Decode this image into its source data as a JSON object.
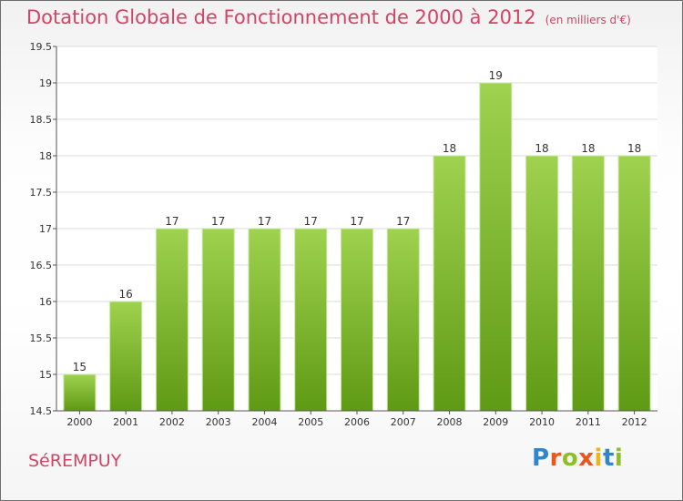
{
  "title": "Dotation Globale de Fonctionnement de 2000 à 2012",
  "unit": "(en milliers d'€)",
  "commune": "SéREMPUY",
  "logo": {
    "text": "Proxiti",
    "letters": [
      {
        "char": "P",
        "color": "#2f86c9"
      },
      {
        "char": "r",
        "color": "#e9561f"
      },
      {
        "char": "o",
        "color": "#8fbf28"
      },
      {
        "char": "x",
        "color": "#e9561f"
      },
      {
        "char": "i",
        "color": "#f0b416"
      },
      {
        "char": "t",
        "color": "#2f86c9"
      },
      {
        "char": "i",
        "color": "#8fbf28"
      }
    ]
  },
  "colors": {
    "title": "#d24366",
    "bar_top": "#9fd24e",
    "bar_bottom": "#5f9a15",
    "grid": "#d9d9d9",
    "axis": "#555555",
    "text": "#333333"
  },
  "chart_data": {
    "type": "bar",
    "categories": [
      "2000",
      "2001",
      "2002",
      "2003",
      "2004",
      "2005",
      "2006",
      "2007",
      "2008",
      "2009",
      "2010",
      "2011",
      "2012"
    ],
    "values": [
      15,
      16,
      17,
      17,
      17,
      17,
      17,
      17,
      18,
      19,
      18,
      18,
      18
    ],
    "data_labels": [
      "15",
      "16",
      "17",
      "17",
      "17",
      "17",
      "17",
      "17",
      "18",
      "19",
      "18",
      "18",
      "18"
    ],
    "title": "Dotation Globale de Fonctionnement de 2000 à 2012",
    "ylabel": "",
    "xlabel": "",
    "ylim": [
      14.5,
      19.5
    ],
    "yticks": [
      14.5,
      15,
      15.5,
      16,
      16.5,
      17,
      17.5,
      18,
      18.5,
      19,
      19.5
    ],
    "ytick_labels": [
      "14.5",
      "15",
      "15.5",
      "16",
      "16.5",
      "17",
      "17.5",
      "18",
      "18.5",
      "19",
      "19.5"
    ],
    "grid": true,
    "legend": "none"
  }
}
